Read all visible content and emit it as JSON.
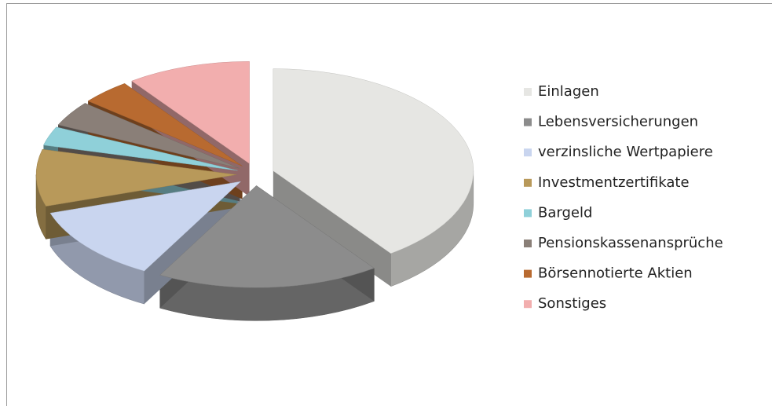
{
  "chart_data": {
    "type": "pie3d",
    "categories": [
      "Einlagen",
      "Lebensversicherungen",
      "verzinsliche Wertpapiere",
      "Investmentzertifikate",
      "Bargeld",
      "Pensionskassenansprüche",
      "Börsennotierte Aktien",
      "Sonstiges"
    ],
    "values": [
      40,
      18,
      12,
      9,
      3,
      4,
      4,
      10
    ],
    "colors": [
      "#e6e6e3",
      "#8c8c8c",
      "#c9d5ef",
      "#b8995a",
      "#8fd0d9",
      "#8a7f78",
      "#b86a30",
      "#f2aeae"
    ],
    "legend": "right"
  }
}
